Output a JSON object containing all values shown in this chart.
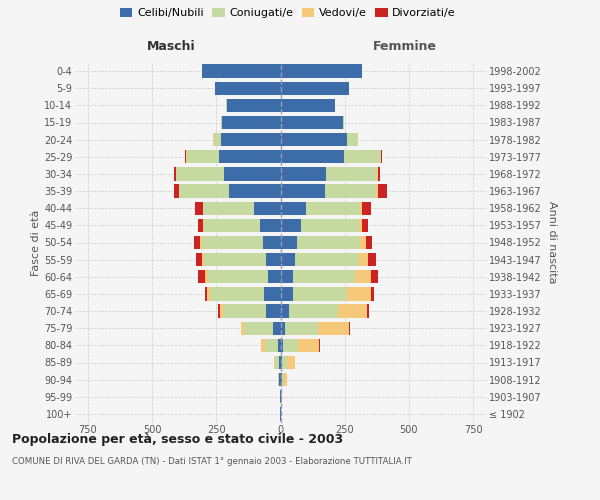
{
  "age_groups": [
    "100+",
    "95-99",
    "90-94",
    "85-89",
    "80-84",
    "75-79",
    "70-74",
    "65-69",
    "60-64",
    "55-59",
    "50-54",
    "45-49",
    "40-44",
    "35-39",
    "30-34",
    "25-29",
    "20-24",
    "15-19",
    "10-14",
    "5-9",
    "0-4"
  ],
  "birth_years": [
    "≤ 1902",
    "1903-1907",
    "1908-1912",
    "1913-1917",
    "1918-1922",
    "1923-1927",
    "1928-1932",
    "1933-1937",
    "1938-1942",
    "1943-1947",
    "1948-1952",
    "1953-1957",
    "1958-1962",
    "1963-1967",
    "1968-1972",
    "1973-1977",
    "1978-1982",
    "1983-1987",
    "1988-1992",
    "1993-1997",
    "1998-2002"
  ],
  "male_celibi": [
    2,
    2,
    4,
    6,
    8,
    28,
    55,
    65,
    48,
    58,
    68,
    78,
    105,
    200,
    220,
    240,
    232,
    228,
    210,
    255,
    305
  ],
  "male_coniugati": [
    0,
    1,
    4,
    14,
    52,
    115,
    170,
    210,
    235,
    240,
    238,
    218,
    195,
    195,
    185,
    125,
    28,
    4,
    2,
    0,
    0
  ],
  "male_vedovi": [
    0,
    0,
    2,
    5,
    14,
    10,
    10,
    10,
    9,
    8,
    7,
    5,
    3,
    2,
    2,
    1,
    1,
    0,
    0,
    0,
    0
  ],
  "male_divorziati": [
    0,
    0,
    0,
    0,
    2,
    2,
    7,
    9,
    28,
    24,
    24,
    22,
    28,
    18,
    9,
    4,
    2,
    0,
    0,
    0,
    0
  ],
  "female_nubili": [
    2,
    2,
    4,
    6,
    10,
    18,
    32,
    48,
    48,
    58,
    63,
    78,
    98,
    175,
    178,
    248,
    258,
    242,
    212,
    268,
    318
  ],
  "female_coniugate": [
    0,
    1,
    4,
    18,
    58,
    128,
    192,
    212,
    242,
    248,
    248,
    228,
    212,
    198,
    198,
    142,
    42,
    7,
    2,
    0,
    0
  ],
  "female_vedove": [
    1,
    4,
    16,
    32,
    82,
    122,
    112,
    92,
    62,
    36,
    20,
    12,
    8,
    5,
    3,
    2,
    1,
    0,
    0,
    0,
    0
  ],
  "female_divorziate": [
    0,
    0,
    0,
    2,
    2,
    4,
    9,
    11,
    28,
    28,
    24,
    24,
    34,
    38,
    9,
    4,
    2,
    0,
    0,
    0,
    0
  ],
  "colors_celibi": "#3d6da8",
  "colors_coniugati": "#c5d9a0",
  "colors_vedovi": "#f5c87a",
  "colors_divorziati": "#cc2222",
  "xlim": 800,
  "title": "Popolazione per età, sesso e stato civile - 2003",
  "subtitle": "COMUNE DI RIVA DEL GARDA (TN) - Dati ISTAT 1° gennaio 2003 - Elaborazione TUTTITALIA.IT",
  "ylabel_left": "Fasce di età",
  "ylabel_right": "Anni di nascita",
  "header_left": "Maschi",
  "header_right": "Femmine",
  "legend_labels": [
    "Celibi/Nubili",
    "Coniugati/e",
    "Vedovi/e",
    "Divorziati/e"
  ],
  "background_color": "#f5f5f5",
  "bar_height": 0.78
}
